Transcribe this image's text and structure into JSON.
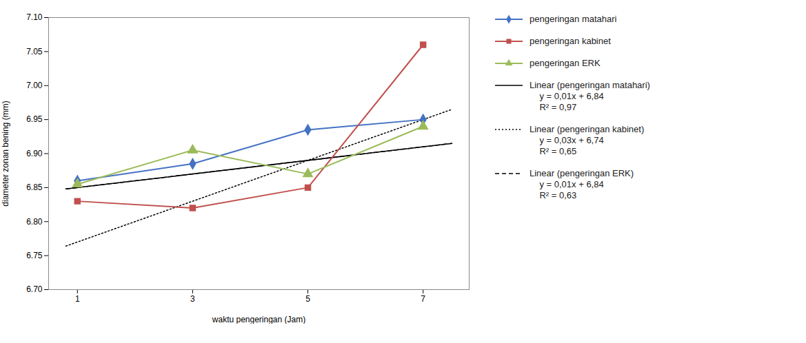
{
  "chart_data": {
    "type": "line",
    "x": [
      1,
      3,
      5,
      7
    ],
    "xlabel": "waktu pengeringan (Jam)",
    "ylabel": "diameter zonan bening (mm)",
    "xlim": [
      0.5,
      7.8
    ],
    "xticks": [
      1,
      3,
      5,
      7
    ],
    "ylim": [
      6.7,
      7.1
    ],
    "yticks": [
      {
        "value": 6.7,
        "label": "6.70"
      },
      6.75,
      {
        "value": 6.8,
        "label": "6.80"
      },
      6.85,
      {
        "value": 6.9,
        "label": "6.90"
      },
      6.95,
      {
        "value": 7.0,
        "label": "7.00"
      },
      7.05,
      {
        "value": 7.1,
        "label": "7.10"
      }
    ],
    "grid": false,
    "legend": "right",
    "series": [
      {
        "name": "pengeringan matahari",
        "color": "#4472C4",
        "marker": "diamond",
        "line_style": "solid",
        "values": [
          6.86,
          6.885,
          6.935,
          6.95
        ]
      },
      {
        "name": "pengeringan kabinet",
        "color": "#C0504D",
        "marker": "square",
        "line_style": "solid",
        "values": [
          6.83,
          6.82,
          6.85,
          7.06
        ]
      },
      {
        "name": "pengeringan ERK",
        "color": "#9BBB59",
        "marker": "triangle",
        "line_style": "solid",
        "values": [
          6.855,
          6.905,
          6.87,
          6.94
        ]
      },
      {
        "name": "Linear (pengeringan matahari)\n    y = 0,01x + 6,84\n    R² = 0,97",
        "color": "black",
        "line_style": "solid",
        "x": [
          0.8,
          7.5
        ],
        "values": [
          6.848,
          6.915
        ]
      },
      {
        "name": "Linear (pengeringan kabinet)\n    y = 0,03x + 6,74\n    R² = 0,65",
        "color": "black",
        "line_style": "dotted",
        "x": [
          0.8,
          7.5
        ],
        "values": [
          6.764,
          6.965
        ]
      },
      {
        "name": "Linear (pengeringan ERK)\n    y = 0,01x + 6,84\n    R² = 0,63",
        "color": "black",
        "line_style": "dashed",
        "x": [
          0.8,
          7.5
        ],
        "values": [
          6.848,
          6.915
        ]
      }
    ]
  }
}
